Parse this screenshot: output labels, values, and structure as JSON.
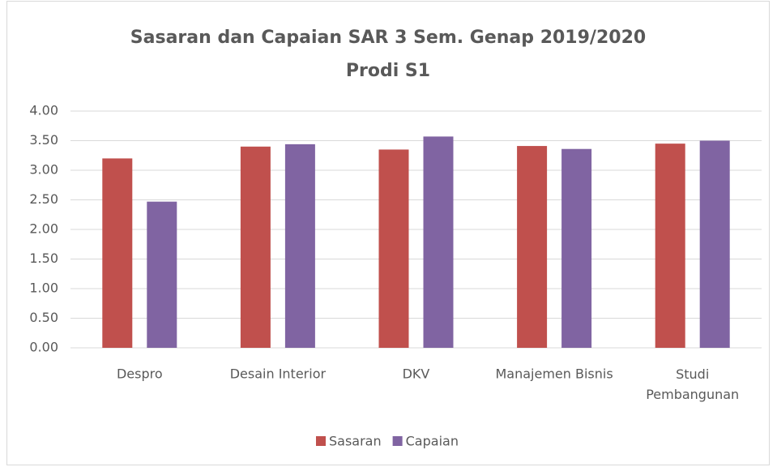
{
  "chart_data": {
    "type": "bar",
    "title": [
      "Sasaran dan Capaian SAR 3 Sem. Genap 2019/2020",
      "Prodi S1"
    ],
    "categories": [
      "Despro",
      "Desain Interior",
      "DKV",
      "Manajemen Bisnis",
      "Studi Pembangunan"
    ],
    "series": [
      {
        "name": "Sasaran",
        "color": "#c0504d",
        "values": [
          3.2,
          3.4,
          3.35,
          3.41,
          3.45
        ]
      },
      {
        "name": "Capaian",
        "color": "#8064a2",
        "values": [
          2.47,
          3.44,
          3.57,
          3.36,
          3.5
        ]
      }
    ],
    "ylim": [
      0,
      4
    ],
    "yticks": [
      {
        "value": 0,
        "label": "0.00"
      },
      {
        "value": 0.5,
        "label": "0.50"
      },
      {
        "value": 1,
        "label": "1.00"
      },
      {
        "value": 1.5,
        "label": "1.50"
      },
      {
        "value": 2,
        "label": "2.00"
      },
      {
        "value": 2.5,
        "label": "2.50"
      },
      {
        "value": 3,
        "label": "3.00"
      },
      {
        "value": 3.5,
        "label": "3.50"
      },
      {
        "value": 4,
        "label": "4.00"
      }
    ],
    "grid": true,
    "legend": "bottom"
  }
}
